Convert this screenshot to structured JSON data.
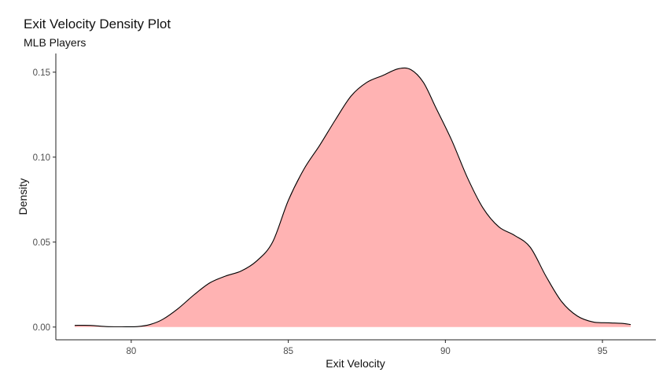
{
  "chart_data": {
    "type": "area",
    "title": "Exit Velocity Density Plot",
    "subtitle": "MLB Players",
    "xlabel": "Exit Velocity",
    "ylabel": "Density",
    "xlim": [
      77.6,
      96.7
    ],
    "ylim": [
      -0.0075,
      0.161
    ],
    "x_ticks": [
      80,
      85,
      90,
      95
    ],
    "x_tick_labels": [
      "80",
      "85",
      "90",
      "95"
    ],
    "y_ticks": [
      0.0,
      0.05,
      0.1,
      0.15
    ],
    "y_tick_labels": [
      "0.00",
      "0.05",
      "0.10",
      "0.15"
    ],
    "grid": false,
    "fill_color": "#ffb3b3",
    "line_color": "#000000",
    "x": [
      78.2,
      78.7,
      79.2,
      79.7,
      80.2,
      80.6,
      81.0,
      81.5,
      82.0,
      82.5,
      83.0,
      83.5,
      84.0,
      84.5,
      85.0,
      85.5,
      86.0,
      86.5,
      87.0,
      87.5,
      88.0,
      88.5,
      88.9,
      89.3,
      89.7,
      90.2,
      90.7,
      91.2,
      91.7,
      92.2,
      92.7,
      93.2,
      93.7,
      94.2,
      94.7,
      95.2,
      95.6,
      95.9
    ],
    "y": [
      0.001,
      0.001,
      0.0003,
      0.0002,
      0.0003,
      0.0015,
      0.0045,
      0.011,
      0.019,
      0.026,
      0.03,
      0.033,
      0.039,
      0.05,
      0.0745,
      0.093,
      0.107,
      0.122,
      0.136,
      0.144,
      0.148,
      0.152,
      0.1515,
      0.144,
      0.129,
      0.11,
      0.088,
      0.07,
      0.059,
      0.054,
      0.047,
      0.03,
      0.015,
      0.0065,
      0.003,
      0.0025,
      0.0022,
      0.0015
    ]
  }
}
